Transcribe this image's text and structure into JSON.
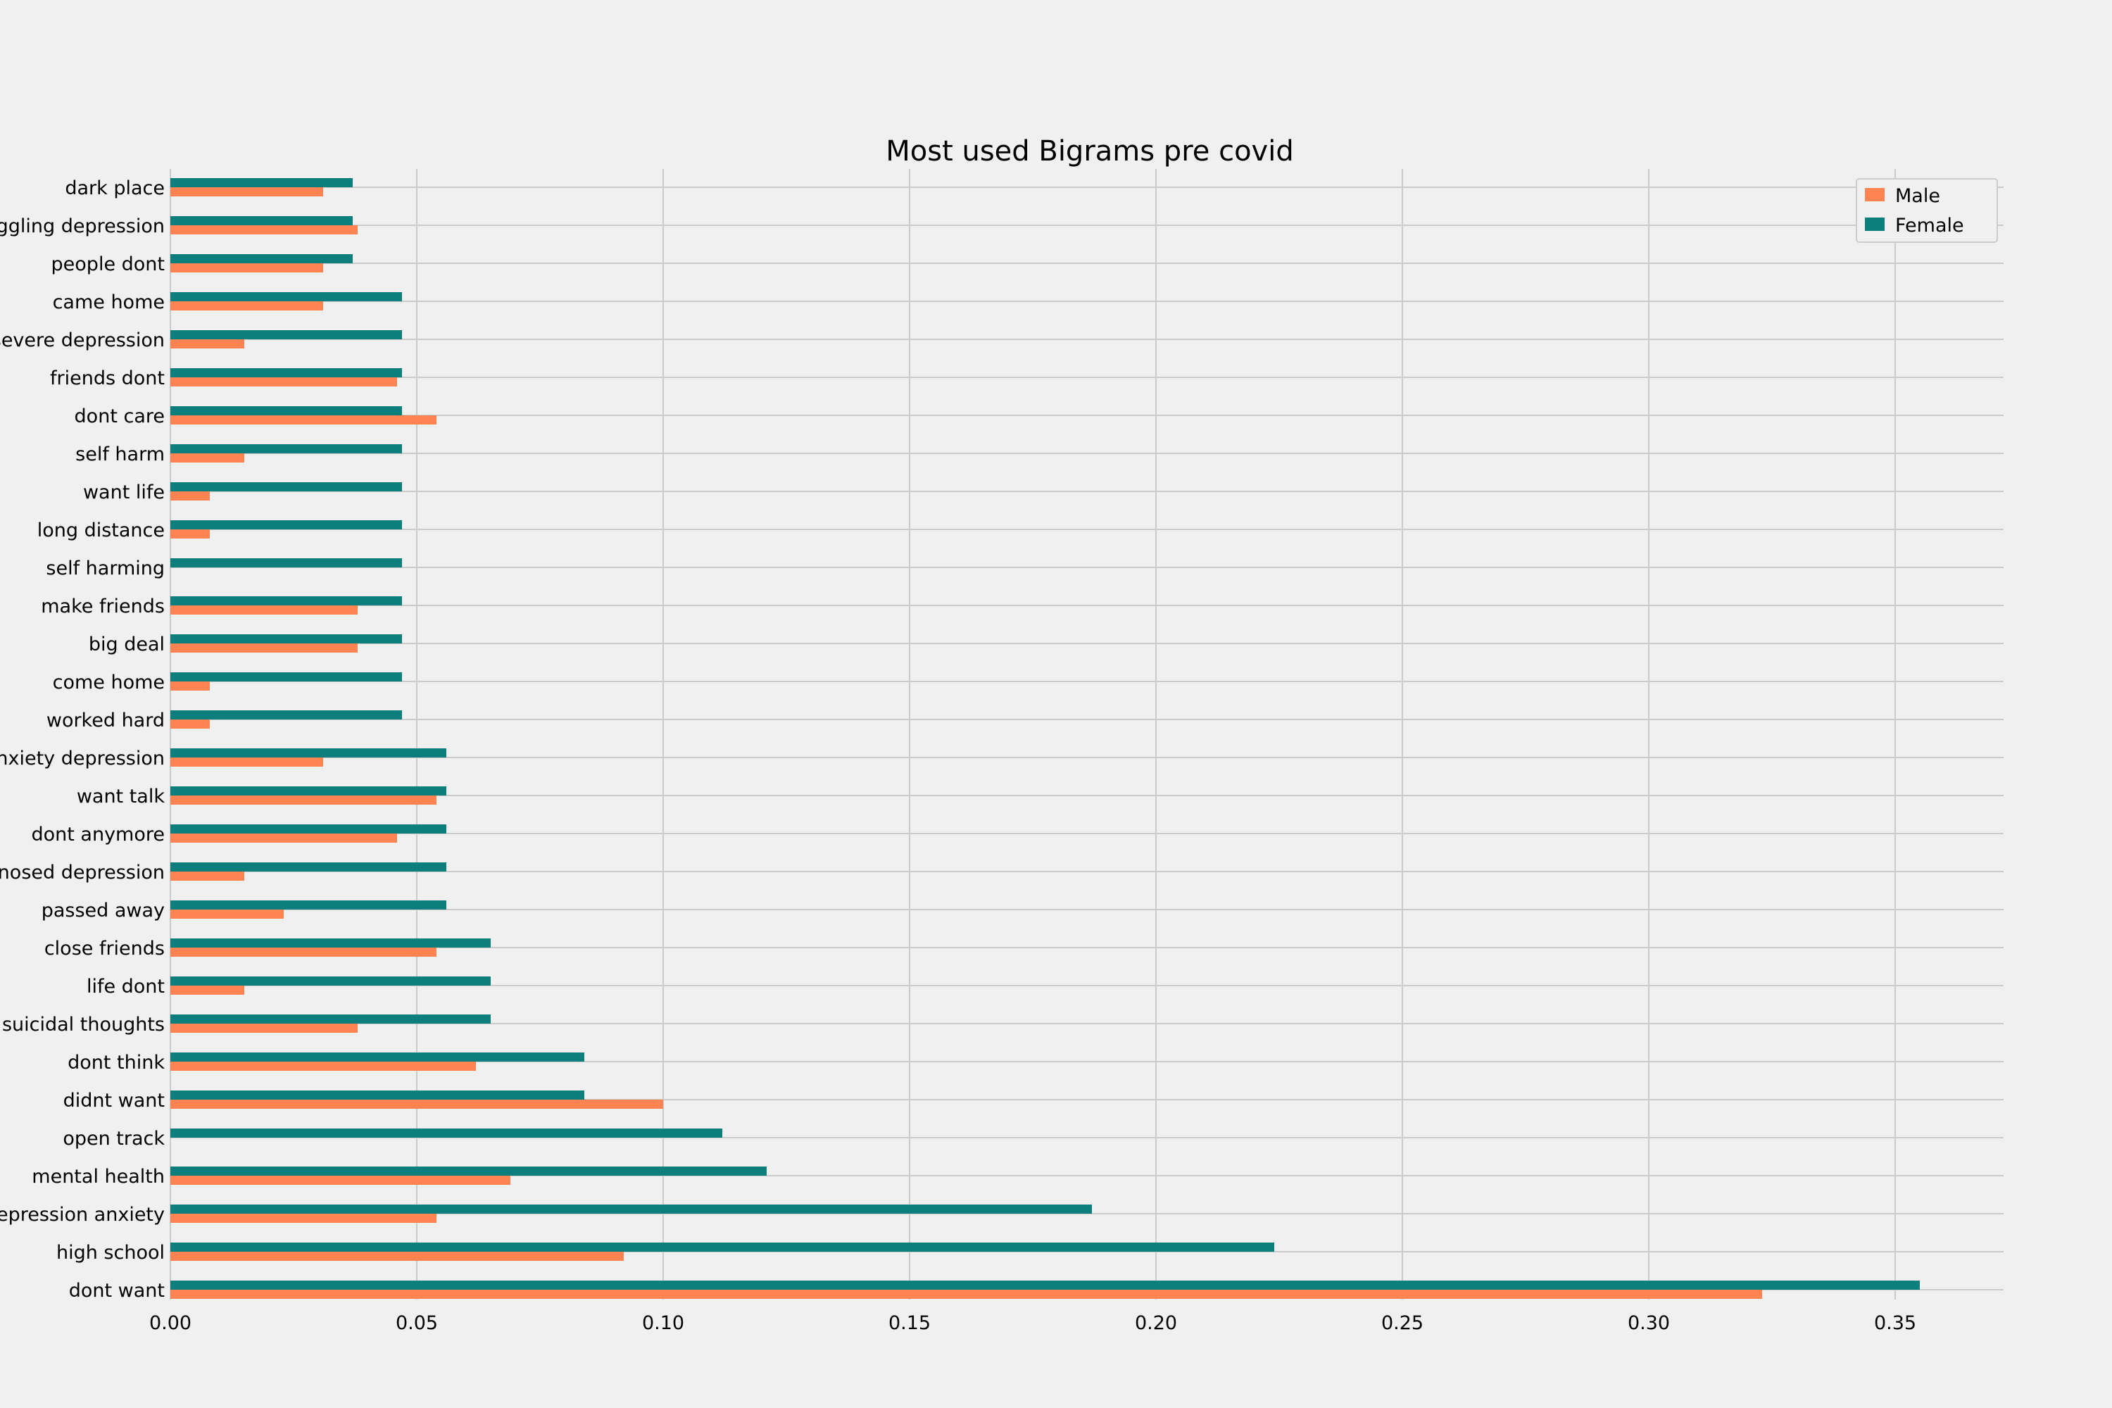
{
  "chart_data": {
    "type": "bar",
    "orientation": "horizontal",
    "title": "Most used Bigrams pre covid",
    "xlabel": "",
    "ylabel": "",
    "xlim": [
      0,
      0.372
    ],
    "xticks": [
      0.0,
      0.05,
      0.1,
      0.15,
      0.2,
      0.25,
      0.3,
      0.35
    ],
    "xtick_labels": [
      "0.00",
      "0.05",
      "0.10",
      "0.15",
      "0.20",
      "0.25",
      "0.30",
      "0.35"
    ],
    "grid": true,
    "legend_position": "top-right",
    "categories": [
      "dont want",
      "high school",
      "depression anxiety",
      "mental health",
      "open track",
      "didnt want",
      "dont think",
      "suicidal thoughts",
      "life dont",
      "close friends",
      "passed away",
      "diagnosed depression",
      "dont anymore",
      "want talk",
      "anxiety depression",
      "worked hard",
      "come home",
      "big deal",
      "make friends",
      "self harming",
      "long distance",
      "want life",
      "self harm",
      "dont care",
      "friends dont",
      "severe depression",
      "came home",
      "people dont",
      "struggling depression",
      "dark place"
    ],
    "series": [
      {
        "name": "Male",
        "color": "#ff8452",
        "values": [
          0.323,
          0.092,
          0.054,
          0.069,
          0.0,
          0.1,
          0.062,
          0.038,
          0.015,
          0.054,
          0.023,
          0.015,
          0.046,
          0.054,
          0.031,
          0.008,
          0.008,
          0.038,
          0.038,
          0.0,
          0.008,
          0.008,
          0.015,
          0.054,
          0.046,
          0.015,
          0.031,
          0.031,
          0.038,
          0.031
        ]
      },
      {
        "name": "Female",
        "color": "#0c7f7c",
        "values": [
          0.355,
          0.224,
          0.187,
          0.121,
          0.112,
          0.084,
          0.084,
          0.065,
          0.065,
          0.065,
          0.056,
          0.056,
          0.056,
          0.056,
          0.056,
          0.047,
          0.047,
          0.047,
          0.047,
          0.047,
          0.047,
          0.047,
          0.047,
          0.047,
          0.047,
          0.047,
          0.047,
          0.037,
          0.037,
          0.037
        ]
      }
    ]
  }
}
